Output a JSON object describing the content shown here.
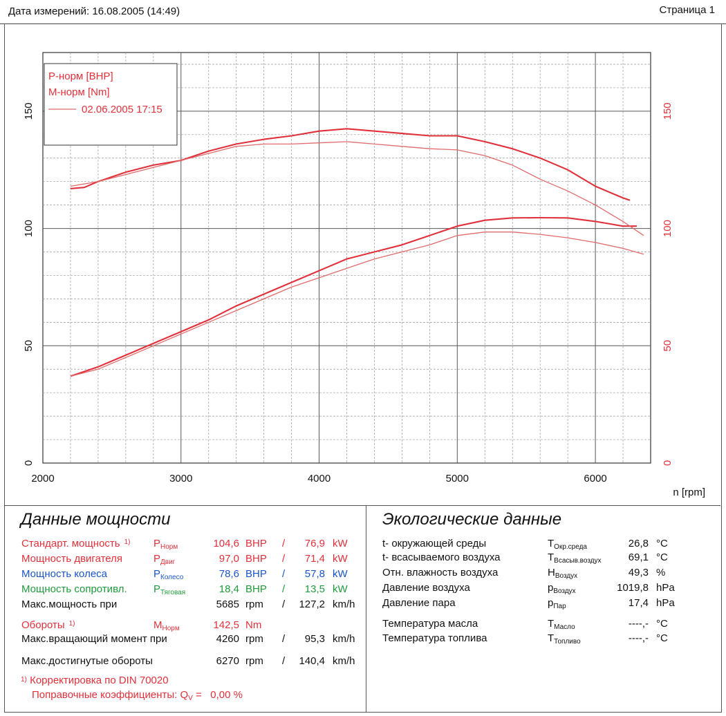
{
  "header": {
    "date_label": "Дата измерений: 16.08.2005 (14:49)",
    "page_label": "Страница 1"
  },
  "colors": {
    "power": "#e0303a",
    "reference": "#e06a6a",
    "grid": "#777777",
    "wheel": "#1a55c8",
    "drag": "#1f9a3a"
  },
  "chart_data": {
    "type": "line",
    "xlabel": "n [rpm]",
    "xlim": [
      2000,
      6400
    ],
    "ylim": [
      0,
      175
    ],
    "x_ticks": [
      "2000",
      "3000",
      "4000",
      "5000",
      "6000"
    ],
    "y_ticks_left": [
      "0",
      "50",
      "100",
      "150"
    ],
    "y_ticks_right": [
      "0",
      "50",
      "100",
      "150"
    ],
    "grid": true,
    "legend_position": "top-left",
    "legend": [
      "P-норм [BHP]",
      "M-норм [Nm]",
      "02.06.2005 17:15"
    ],
    "series": [
      {
        "name": "P-норм [BHP]",
        "style": "main",
        "x": [
          2200,
          2400,
          2600,
          2800,
          3000,
          3200,
          3400,
          3600,
          3800,
          4000,
          4200,
          4400,
          4600,
          4800,
          5000,
          5200,
          5400,
          5600,
          5800,
          6000,
          6200,
          6300
        ],
        "y": [
          37,
          41,
          46,
          51,
          56,
          61,
          67,
          72,
          77,
          82,
          87,
          90,
          93,
          97,
          101,
          103.5,
          104.5,
          104.6,
          104.5,
          103,
          101,
          101
        ]
      },
      {
        "name": "M-норм [Nm]",
        "style": "main",
        "x": [
          2200,
          2300,
          2400,
          2600,
          2800,
          3000,
          3200,
          3400,
          3600,
          3800,
          4000,
          4200,
          4400,
          4600,
          4800,
          5000,
          5200,
          5400,
          5600,
          5800,
          6000,
          6200,
          6250
        ],
        "y": [
          117,
          117.5,
          120,
          124,
          127,
          129,
          133,
          136,
          138,
          139.5,
          141.5,
          142.5,
          141.5,
          140.5,
          139.5,
          139.5,
          137,
          134,
          130,
          125,
          118,
          113,
          112
        ]
      },
      {
        "name": "02.06.2005 17:15",
        "style": "reference",
        "x": [
          2200,
          2400,
          2600,
          2800,
          3000,
          3200,
          3400,
          3600,
          3800,
          4000,
          4200,
          4400,
          4600,
          4800,
          5000,
          5200,
          5400,
          5600,
          5800,
          6000,
          6200,
          6350
        ],
        "y": [
          37,
          40,
          45,
          50,
          55,
          60,
          65,
          70,
          75,
          79,
          83,
          87,
          90,
          93,
          97,
          98.5,
          98.5,
          97.5,
          96,
          94,
          91.5,
          89
        ]
      },
      {
        "name": "02.06.2005 17:15",
        "style": "reference",
        "x": [
          2200,
          2400,
          2600,
          2800,
          3000,
          3200,
          3400,
          3600,
          3800,
          4000,
          4200,
          4400,
          4600,
          4800,
          5000,
          5200,
          5400,
          5600,
          5800,
          6000,
          6200,
          6350
        ],
        "y": [
          118,
          120,
          123,
          126,
          129,
          132,
          135,
          136,
          136,
          136.5,
          137,
          136,
          135,
          134,
          133.5,
          131,
          127,
          121,
          116,
          110,
          103,
          97
        ]
      }
    ]
  },
  "power_section": {
    "title": "Данные мощности",
    "rows": [
      {
        "label": "Стандарт. мощность",
        "note": "1)",
        "symbol": "P",
        "sub": "Норм",
        "v1": "104,6",
        "u1": "BHP",
        "sep": "/",
        "v2": "76,9",
        "u2": "kW",
        "color": "red"
      },
      {
        "label": "Мощность двигателя",
        "symbol": "P",
        "sub": "Двиг",
        "v1": "97,0",
        "u1": "BHP",
        "sep": "/",
        "v2": "71,4",
        "u2": "kW",
        "color": "red"
      },
      {
        "label": "Мощность колеса",
        "symbol": "P",
        "sub": "Колесо",
        "v1": "78,6",
        "u1": "BHP",
        "sep": "/",
        "v2": "57,8",
        "u2": "kW",
        "color": "blue"
      },
      {
        "label": "Мощность сопротивл.",
        "symbol": "P",
        "sub": "Тяговая",
        "v1": "18,4",
        "u1": "BHP",
        "sep": "/",
        "v2": "13,5",
        "u2": "kW",
        "color": "green"
      },
      {
        "label": "Макс.мощность при",
        "v1": "5685",
        "u1": "rpm",
        "sep": "/",
        "v2": "127,2",
        "u2": "km/h",
        "color": "dark"
      },
      {
        "label": "Обороты",
        "note": "1)",
        "symbol": "M",
        "sub": "Норм",
        "v1": "142,5",
        "u1": "Nm",
        "color": "red"
      },
      {
        "label": "Макс.вращающий момент при",
        "v1": "4260",
        "u1": "rpm",
        "sep": "/",
        "v2": "95,3",
        "u2": "km/h",
        "color": "dark"
      },
      {
        "label": "Макс.достигнутые обороты",
        "v1": "6270",
        "u1": "rpm",
        "sep": "/",
        "v2": "140,4",
        "u2": "km/h",
        "color": "dark"
      }
    ],
    "footnote_mark": "1)",
    "footnote": "Корректировка по DIN 70020",
    "correction_label": "Поправочные коэффициенты: Q",
    "correction_sub": "V",
    "correction_value": " =   0,00 %"
  },
  "eco_section": {
    "title": "Экологические данные",
    "rows": [
      {
        "label": "t- окружающей среды",
        "symbol": "T",
        "sub": "Окр.среда",
        "value": "26,8",
        "unit": "°C"
      },
      {
        "label": "t- всасываемого воздуха",
        "symbol": "T",
        "sub": "Всасыв.воздух",
        "value": "69,1",
        "unit": "°C"
      },
      {
        "label": "Отн. влажность воздуха",
        "symbol": "H",
        "sub": "Воздух",
        "value": "49,3",
        "unit": "%"
      },
      {
        "label": "Давление воздуха",
        "symbol": "p",
        "sub": "Воздух",
        "value": "1019,8",
        "unit": "hPa"
      },
      {
        "label": "Давление пара",
        "symbol": "p",
        "sub": "Пар",
        "value": "17,4",
        "unit": "hPa"
      },
      {
        "label": "Температура масла",
        "symbol": "T",
        "sub": "Масло",
        "value": "----,-",
        "unit": "°C"
      },
      {
        "label": "Температура топлива",
        "symbol": "T",
        "sub": "Топливо",
        "value": "----,-",
        "unit": "°C"
      }
    ]
  }
}
